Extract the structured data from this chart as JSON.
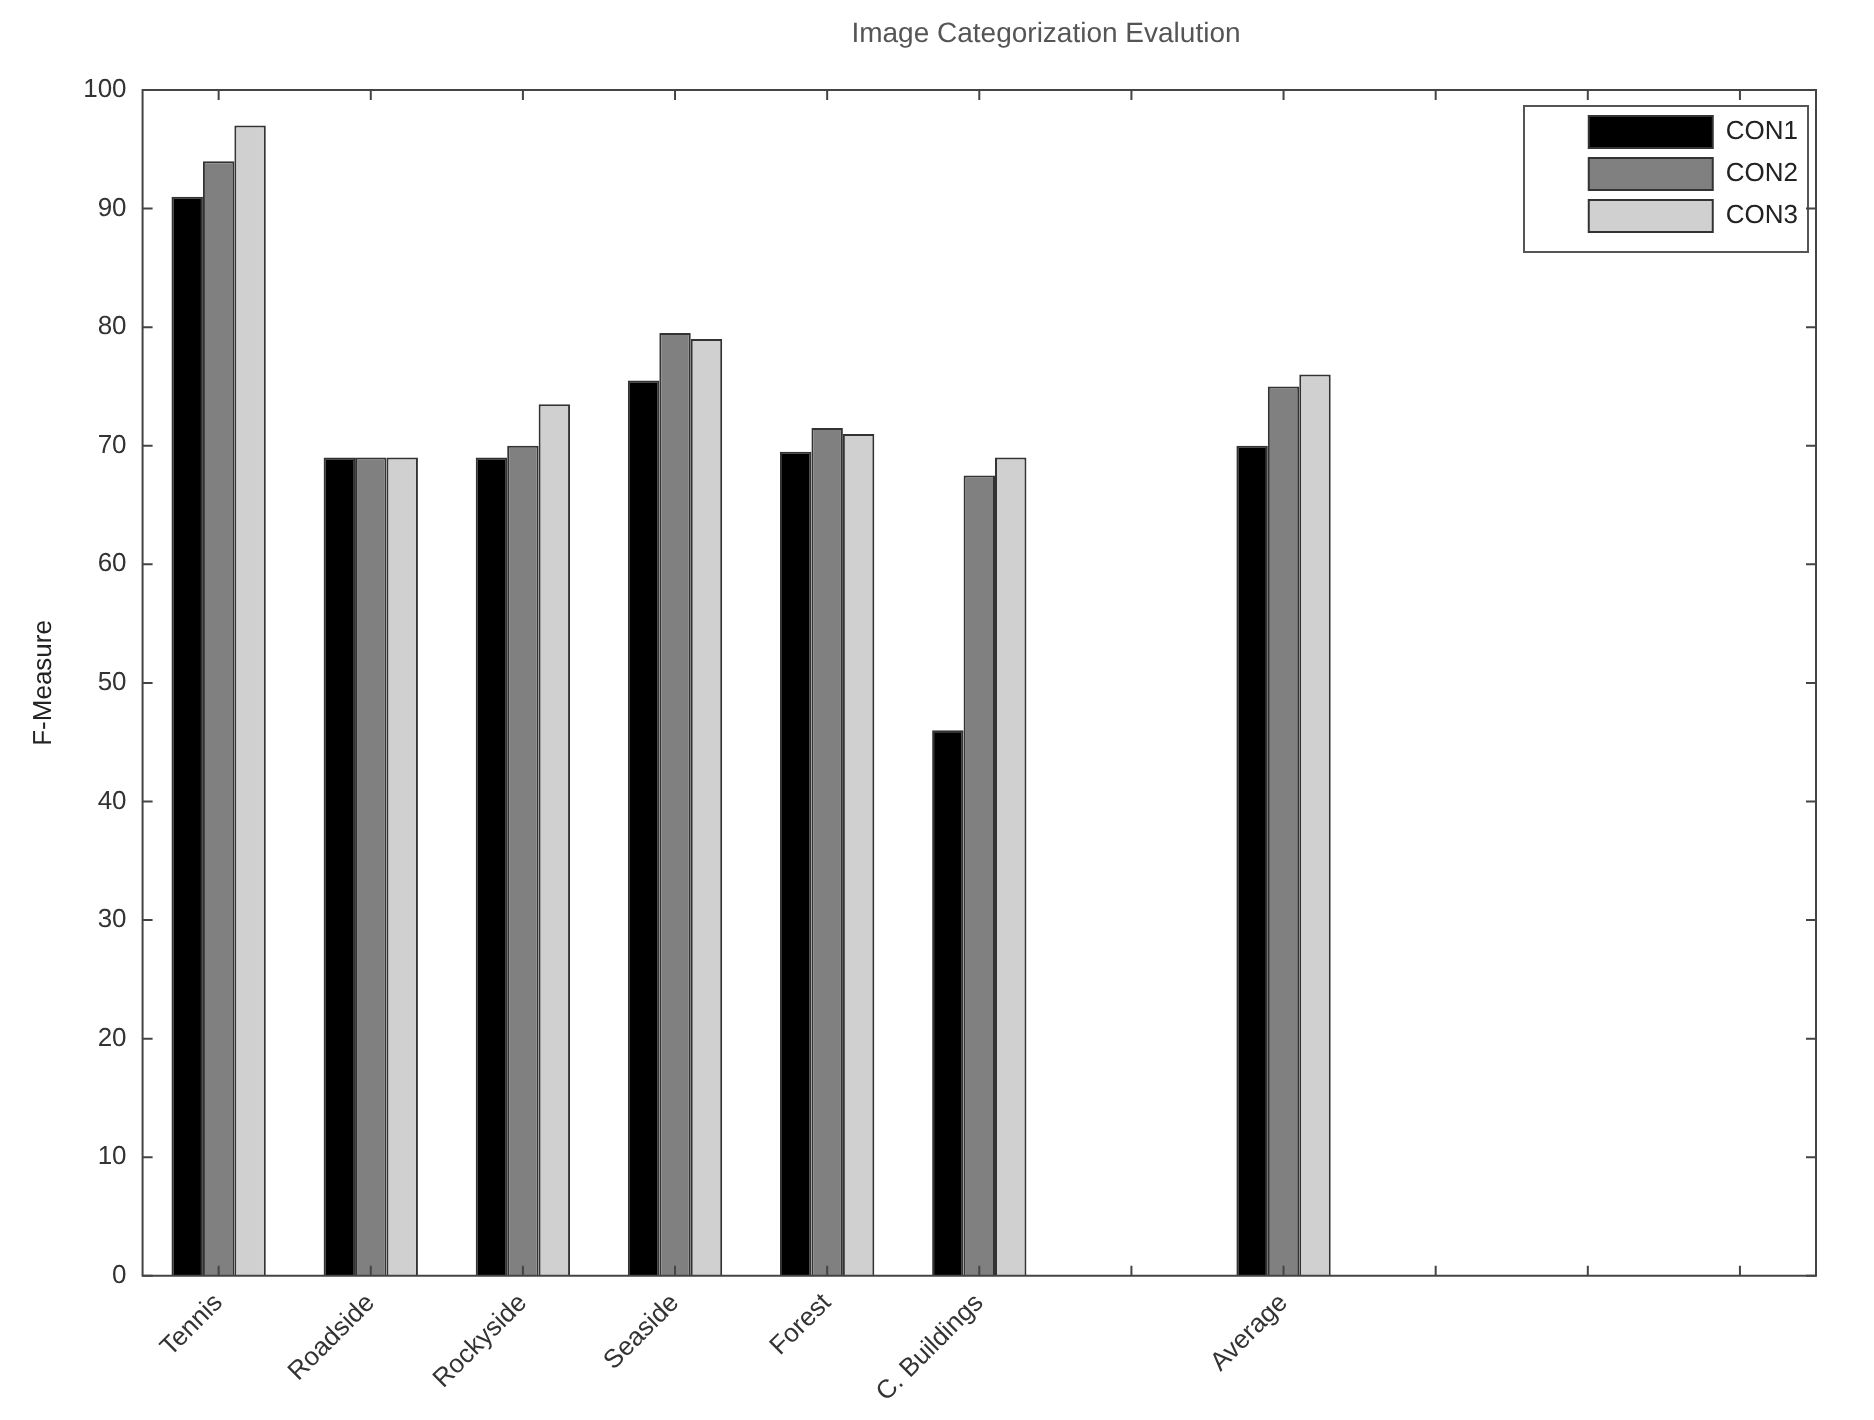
{
  "chart_data": {
    "type": "bar",
    "title": "Image Categorization Evalution",
    "ylabel": "F-Measure",
    "categories": [
      "Tennis",
      "Roadside",
      "Rockyside",
      "Seaside",
      "Forest",
      "C. Buildings",
      null,
      "Average",
      null,
      null,
      null
    ],
    "series": [
      {
        "name": "CON1",
        "color": "#000000",
        "values": [
          91,
          69,
          69,
          75.5,
          69.5,
          46,
          null,
          70,
          null,
          null,
          null
        ]
      },
      {
        "name": "CON2",
        "color": "#808080",
        "values": [
          94,
          69,
          70,
          79.5,
          71.5,
          67.5,
          null,
          75,
          null,
          null,
          null
        ]
      },
      {
        "name": "CON3",
        "color": "#d0d0d0",
        "values": [
          97,
          69,
          73.5,
          79,
          71,
          69,
          null,
          76,
          null,
          null,
          null
        ]
      }
    ],
    "ylim": [
      0,
      100
    ],
    "yticks": [
      0,
      10,
      20,
      30,
      40,
      50,
      60,
      70,
      80,
      90,
      100
    ],
    "grid": false,
    "legend": "top right"
  }
}
